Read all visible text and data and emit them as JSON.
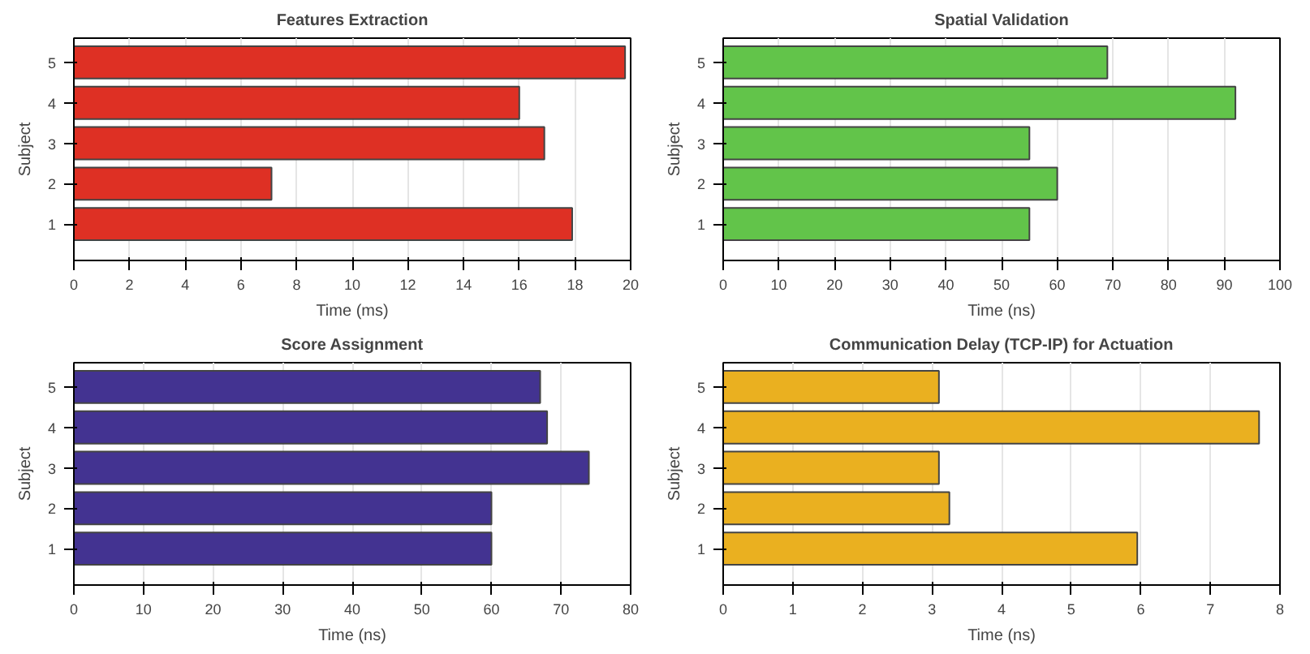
{
  "chart_data": [
    {
      "type": "bar",
      "orientation": "horizontal",
      "title": "Features Extraction",
      "xlabel": "Time (ms)",
      "ylabel": "Subject",
      "categories": [
        "5",
        "4",
        "3",
        "2",
        "1"
      ],
      "values": [
        19.8,
        16.0,
        16.9,
        7.1,
        17.9
      ],
      "color": "#de3024",
      "xlim": [
        0,
        20
      ],
      "xticks": [
        0,
        2,
        4,
        6,
        8,
        10,
        12,
        14,
        16,
        18,
        20
      ],
      "grid": "x"
    },
    {
      "type": "bar",
      "orientation": "horizontal",
      "title": "Spatial Validation",
      "xlabel": "Time (ns)",
      "ylabel": "Subject",
      "categories": [
        "5",
        "4",
        "3",
        "2",
        "1"
      ],
      "values": [
        69,
        92,
        55,
        60,
        55
      ],
      "color": "#62c44a",
      "xlim": [
        0,
        100
      ],
      "xticks": [
        0,
        10,
        20,
        30,
        40,
        50,
        60,
        70,
        80,
        90,
        100
      ],
      "grid": "x"
    },
    {
      "type": "bar",
      "orientation": "horizontal",
      "title": "Score Assignment",
      "xlabel": "Time (ns)",
      "ylabel": "Subject",
      "categories": [
        "5",
        "4",
        "3",
        "2",
        "1"
      ],
      "values": [
        67,
        68,
        74,
        60,
        60
      ],
      "color": "#433391",
      "xlim": [
        0,
        80
      ],
      "xticks": [
        0,
        10,
        20,
        30,
        40,
        50,
        60,
        70,
        80
      ],
      "grid": "x"
    },
    {
      "type": "bar",
      "orientation": "horizontal",
      "title": "Communication Delay (TCP-IP) for Actuation",
      "xlabel": "Time (ns)",
      "ylabel": "Subject",
      "categories": [
        "5",
        "4",
        "3",
        "2",
        "1"
      ],
      "values": [
        3.1,
        7.7,
        3.1,
        3.25,
        5.95
      ],
      "color": "#eab020",
      "xlim": [
        0,
        8
      ],
      "xticks": [
        0,
        1,
        2,
        3,
        4,
        5,
        6,
        7,
        8
      ],
      "grid": "x"
    }
  ]
}
